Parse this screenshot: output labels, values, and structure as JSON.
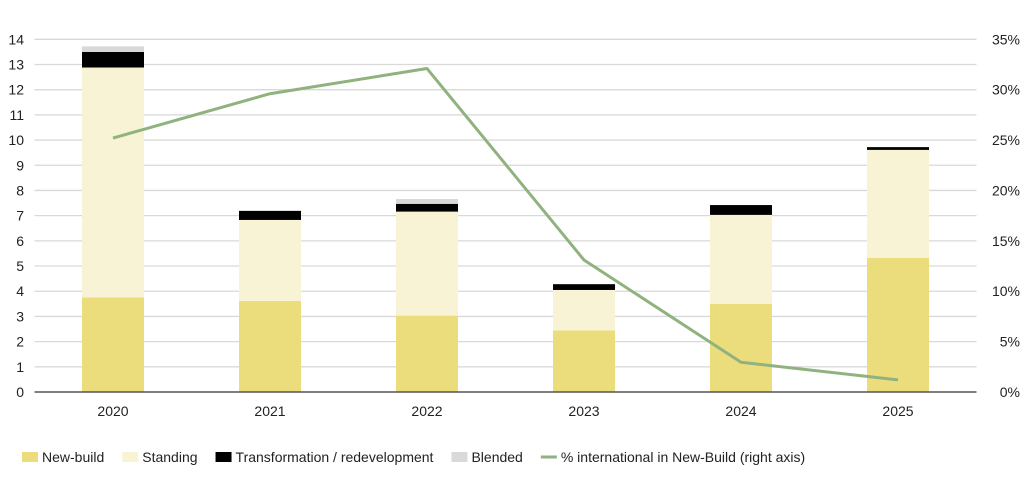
{
  "chart_data": {
    "type": "bar",
    "stacked": true,
    "categories": [
      "2020",
      "2021",
      "2022",
      "2023",
      "2024",
      "2025"
    ],
    "series": [
      {
        "name": "New-build",
        "color": "#ebdd7c",
        "values": [
          3.75,
          3.62,
          3.03,
          2.44,
          3.5,
          5.32
        ]
      },
      {
        "name": "Standing",
        "color": "#f9f3d6",
        "values": [
          9.13,
          3.21,
          4.13,
          1.61,
          3.53,
          4.29
        ]
      },
      {
        "name": "Transformation / redevelopment",
        "color": "#000000",
        "values": [
          0.62,
          0.36,
          0.31,
          0.23,
          0.39,
          0.11
        ]
      },
      {
        "name": "Blended",
        "color": "#d9d9d9",
        "values": [
          0.22,
          0,
          0.19,
          0,
          0,
          0
        ]
      }
    ],
    "line_series": {
      "name": "% international in New-Build (right axis)",
      "color": "#8fb27f",
      "axis": "right",
      "values": [
        25.2,
        29.6,
        32.1,
        13.1,
        2.95,
        1.2
      ]
    },
    "ylim": [
      0,
      14
    ],
    "yticks": [
      "0",
      "1",
      "2",
      "3",
      "4",
      "5",
      "6",
      "7",
      "8",
      "9",
      "10",
      "11",
      "12",
      "13",
      "14"
    ],
    "y2lim": [
      0,
      35
    ],
    "y2ticks": [
      "0%",
      "5%",
      "10%",
      "15%",
      "20%",
      "25%",
      "30%",
      "35%"
    ],
    "grid": true,
    "legend_placement": "bottom"
  }
}
